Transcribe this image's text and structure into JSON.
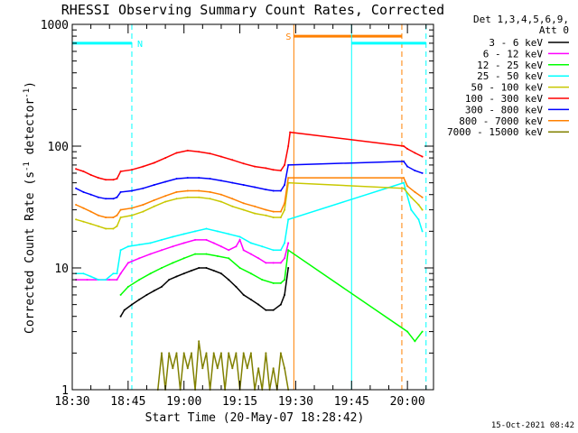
{
  "chart_data": {
    "type": "line",
    "title": "RHESSI Observing Summary Count Rates, Corrected",
    "xlabel": "Start Time (20-May-07 18:28:42)",
    "ylabel_main": "Corrected Count Rate (s",
    "ylabel_sup1": "-1",
    "ylabel_mid": " detector",
    "ylabel_sup2": "-1",
    "ylabel_end": ")",
    "yscale": "log",
    "ylim": [
      1,
      1000
    ],
    "x_unit": "minutes since 18:30 UT",
    "xlim": [
      0,
      97
    ],
    "x_ticks": [
      {
        "value": 0,
        "label": "18:30"
      },
      {
        "value": 15,
        "label": "18:45"
      },
      {
        "value": 30,
        "label": "19:00"
      },
      {
        "value": 45,
        "label": "19:15"
      },
      {
        "value": 60,
        "label": "19:30"
      },
      {
        "value": 75,
        "label": "19:45"
      },
      {
        "value": 90,
        "label": "20:00"
      }
    ],
    "y_ticks": [
      {
        "value": 1,
        "label": "1"
      },
      {
        "value": 10,
        "label": "10"
      },
      {
        "value": 100,
        "label": "100"
      },
      {
        "value": 1000,
        "label": "1000"
      }
    ],
    "legend_header": [
      "Det 1,3,4,5,6,9,",
      "Att 0"
    ],
    "legend_placement": "right",
    "series": [
      {
        "name": "3 - 6 keV",
        "color": "#000000",
        "values": [
          [
            13,
            4
          ],
          [
            14,
            4.5
          ],
          [
            16,
            5
          ],
          [
            18,
            5.5
          ],
          [
            20,
            6
          ],
          [
            22,
            6.5
          ],
          [
            24,
            7
          ],
          [
            26,
            8
          ],
          [
            28,
            8.5
          ],
          [
            30,
            9
          ],
          [
            32,
            9.5
          ],
          [
            34,
            10
          ],
          [
            36,
            10
          ],
          [
            38,
            9.5
          ],
          [
            40,
            9
          ],
          [
            42,
            8
          ],
          [
            44,
            7
          ],
          [
            46,
            6
          ],
          [
            48,
            5.5
          ],
          [
            50,
            5
          ],
          [
            52,
            4.5
          ],
          [
            54,
            4.5
          ],
          [
            56,
            5
          ],
          [
            57,
            6
          ],
          [
            58,
            10
          ]
        ]
      },
      {
        "name": "6 - 12 keV",
        "color": "#ff00ff",
        "values": [
          [
            1,
            8
          ],
          [
            4,
            8
          ],
          [
            7,
            8
          ],
          [
            10,
            8
          ],
          [
            12,
            8
          ],
          [
            13,
            9
          ],
          [
            15,
            11
          ],
          [
            18,
            12
          ],
          [
            21,
            13
          ],
          [
            24,
            14
          ],
          [
            27,
            15
          ],
          [
            30,
            16
          ],
          [
            33,
            17
          ],
          [
            36,
            17
          ],
          [
            38,
            16
          ],
          [
            40,
            15
          ],
          [
            42,
            14
          ],
          [
            44,
            15
          ],
          [
            45,
            17
          ],
          [
            46,
            14
          ],
          [
            48,
            13
          ],
          [
            50,
            12
          ],
          [
            52,
            11
          ],
          [
            54,
            11
          ],
          [
            56,
            11
          ],
          [
            57,
            12
          ],
          [
            58,
            16
          ]
        ]
      },
      {
        "name": "12 - 25 keV",
        "color": "#00ff00",
        "values": [
          [
            13,
            6
          ],
          [
            15,
            7
          ],
          [
            18,
            8
          ],
          [
            21,
            9
          ],
          [
            24,
            10
          ],
          [
            27,
            11
          ],
          [
            30,
            12
          ],
          [
            33,
            13
          ],
          [
            36,
            13
          ],
          [
            39,
            12.5
          ],
          [
            42,
            12
          ],
          [
            45,
            10
          ],
          [
            48,
            9
          ],
          [
            51,
            8
          ],
          [
            54,
            7.5
          ],
          [
            56,
            7.5
          ],
          [
            57,
            8
          ],
          [
            58,
            14
          ],
          [
            90,
            3
          ],
          [
            92,
            2.5
          ],
          [
            94,
            3
          ]
        ]
      },
      {
        "name": "25 - 50 keV",
        "color": "#00ffff",
        "values": [
          [
            1,
            9
          ],
          [
            3,
            9
          ],
          [
            5,
            8.5
          ],
          [
            7,
            8
          ],
          [
            9,
            8
          ],
          [
            11,
            9
          ],
          [
            12,
            9
          ],
          [
            13,
            14
          ],
          [
            15,
            15
          ],
          [
            18,
            15.5
          ],
          [
            21,
            16
          ],
          [
            24,
            17
          ],
          [
            27,
            18
          ],
          [
            30,
            19
          ],
          [
            33,
            20
          ],
          [
            36,
            21
          ],
          [
            39,
            20
          ],
          [
            42,
            19
          ],
          [
            45,
            18
          ],
          [
            48,
            16
          ],
          [
            51,
            15
          ],
          [
            54,
            14
          ],
          [
            56,
            14
          ],
          [
            57,
            16
          ],
          [
            58,
            25
          ],
          [
            89,
            50
          ],
          [
            91,
            30
          ],
          [
            93,
            25
          ],
          [
            94,
            20
          ]
        ]
      },
      {
        "name": "50 - 100 keV",
        "color": "#c8c800",
        "values": [
          [
            1,
            25
          ],
          [
            3,
            24
          ],
          [
            5,
            23
          ],
          [
            7,
            22
          ],
          [
            9,
            21
          ],
          [
            11,
            21
          ],
          [
            12,
            22
          ],
          [
            13,
            26
          ],
          [
            16,
            27
          ],
          [
            19,
            29
          ],
          [
            22,
            32
          ],
          [
            25,
            35
          ],
          [
            28,
            37
          ],
          [
            31,
            38
          ],
          [
            34,
            38
          ],
          [
            37,
            37
          ],
          [
            40,
            35
          ],
          [
            43,
            32
          ],
          [
            46,
            30
          ],
          [
            49,
            28
          ],
          [
            52,
            27
          ],
          [
            54,
            26
          ],
          [
            56,
            26
          ],
          [
            57,
            30
          ],
          [
            58,
            50
          ],
          [
            89,
            45
          ],
          [
            91,
            38
          ],
          [
            93,
            33
          ],
          [
            94,
            30
          ]
        ]
      },
      {
        "name": "100 - 300 keV",
        "color": "#ff0000",
        "values": [
          [
            1,
            65
          ],
          [
            3,
            62
          ],
          [
            5,
            58
          ],
          [
            7,
            55
          ],
          [
            9,
            53
          ],
          [
            11,
            53
          ],
          [
            12,
            54
          ],
          [
            13,
            62
          ],
          [
            16,
            64
          ],
          [
            19,
            68
          ],
          [
            22,
            73
          ],
          [
            25,
            80
          ],
          [
            28,
            88
          ],
          [
            31,
            92
          ],
          [
            34,
            90
          ],
          [
            37,
            87
          ],
          [
            40,
            82
          ],
          [
            43,
            77
          ],
          [
            46,
            72
          ],
          [
            49,
            68
          ],
          [
            52,
            66
          ],
          [
            54,
            64
          ],
          [
            56,
            63
          ],
          [
            57,
            70
          ],
          [
            58,
            100
          ],
          [
            58.5,
            130
          ],
          [
            89,
            100
          ],
          [
            90,
            95
          ],
          [
            92,
            88
          ],
          [
            94,
            82
          ]
        ]
      },
      {
        "name": "300 - 800 keV",
        "color": "#0000ff",
        "values": [
          [
            1,
            45
          ],
          [
            3,
            42
          ],
          [
            5,
            40
          ],
          [
            7,
            38
          ],
          [
            9,
            37
          ],
          [
            11,
            37
          ],
          [
            12,
            38
          ],
          [
            13,
            42
          ],
          [
            16,
            43
          ],
          [
            19,
            45
          ],
          [
            22,
            48
          ],
          [
            25,
            51
          ],
          [
            28,
            54
          ],
          [
            31,
            55
          ],
          [
            34,
            55
          ],
          [
            37,
            54
          ],
          [
            40,
            52
          ],
          [
            43,
            50
          ],
          [
            46,
            48
          ],
          [
            49,
            46
          ],
          [
            52,
            44
          ],
          [
            54,
            43
          ],
          [
            56,
            43
          ],
          [
            57,
            48
          ],
          [
            58,
            70
          ],
          [
            89,
            75
          ],
          [
            90,
            68
          ],
          [
            92,
            63
          ],
          [
            94,
            60
          ]
        ]
      },
      {
        "name": "800 - 7000 keV",
        "color": "#ff8000",
        "values": [
          [
            1,
            33
          ],
          [
            3,
            31
          ],
          [
            5,
            29
          ],
          [
            7,
            27
          ],
          [
            9,
            26
          ],
          [
            11,
            26
          ],
          [
            12,
            27
          ],
          [
            13,
            30
          ],
          [
            16,
            31
          ],
          [
            19,
            33
          ],
          [
            22,
            36
          ],
          [
            25,
            39
          ],
          [
            28,
            42
          ],
          [
            31,
            43
          ],
          [
            34,
            43
          ],
          [
            37,
            42
          ],
          [
            40,
            40
          ],
          [
            43,
            37
          ],
          [
            46,
            34
          ],
          [
            49,
            32
          ],
          [
            52,
            30
          ],
          [
            54,
            29
          ],
          [
            56,
            29
          ],
          [
            57,
            34
          ],
          [
            58,
            55
          ],
          [
            89,
            55
          ],
          [
            90,
            47
          ],
          [
            92,
            42
          ],
          [
            94,
            38
          ]
        ]
      },
      {
        "name": "7000 - 15000 keV",
        "color": "#808000",
        "values": [
          [
            23,
            1
          ],
          [
            24,
            2
          ],
          [
            25,
            1
          ],
          [
            26,
            2
          ],
          [
            27,
            1.5
          ],
          [
            28,
            2
          ],
          [
            29,
            1
          ],
          [
            30,
            2
          ],
          [
            31,
            1.5
          ],
          [
            32,
            2
          ],
          [
            33,
            1
          ],
          [
            34,
            2.5
          ],
          [
            35,
            1.5
          ],
          [
            36,
            2
          ],
          [
            37,
            1
          ],
          [
            38,
            2
          ],
          [
            39,
            1.5
          ],
          [
            40,
            2
          ],
          [
            41,
            1
          ],
          [
            42,
            2
          ],
          [
            43,
            1.5
          ],
          [
            44,
            2
          ],
          [
            45,
            1
          ],
          [
            46,
            2
          ],
          [
            47,
            1.5
          ],
          [
            48,
            2
          ],
          [
            49,
            1
          ],
          [
            50,
            1.5
          ],
          [
            51,
            1
          ],
          [
            52,
            2
          ],
          [
            53,
            1
          ],
          [
            54,
            1.5
          ],
          [
            55,
            1
          ],
          [
            56,
            2
          ],
          [
            57,
            1.5
          ],
          [
            58,
            1
          ]
        ]
      }
    ],
    "annotations": [
      {
        "label": "N",
        "color": "#00ffff",
        "x_start": 0,
        "x_end": 16,
        "y": 700,
        "bar_edge": 0,
        "dashed_edge": 16
      },
      {
        "label": "S",
        "color": "#ff8000",
        "x_start": 59.5,
        "x_end": 88.5,
        "y": 800,
        "bar_edge": 59.5,
        "dashed_edge": 88.5
      },
      {
        "label": "",
        "color": "#00ffff",
        "x_start": 75,
        "x_end": 95,
        "y": 700,
        "bar_edge": 75,
        "dashed_edge": 95
      }
    ],
    "footer_date": "15-Oct-2021 08:42"
  }
}
